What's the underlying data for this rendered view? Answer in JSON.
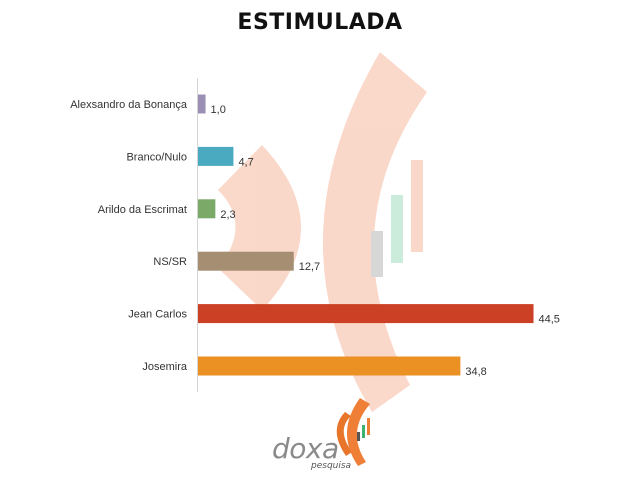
{
  "chart_data": {
    "type": "bar",
    "orientation": "horizontal",
    "title": "ESTIMULADA",
    "categories": [
      "Alexsandro da Bonança",
      "Branco/Nulo",
      "Arildo da Escrimat",
      "NS/SR",
      "Jean Carlos",
      "Josemira"
    ],
    "values": [
      1.0,
      4.7,
      2.3,
      12.7,
      44.5,
      34.8
    ],
    "value_labels": [
      "1,0",
      "4,7",
      "2,3",
      "12,7",
      "44,5",
      "34,8"
    ],
    "colors": [
      "#9b8fb3",
      "#4aaac0",
      "#7aa968",
      "#a58e72",
      "#cc4125",
      "#eb9124"
    ],
    "xlim": [
      0,
      45
    ],
    "grid": false,
    "legend": "none"
  },
  "logo": {
    "name": "doxa",
    "tagline": "pesquisa"
  }
}
